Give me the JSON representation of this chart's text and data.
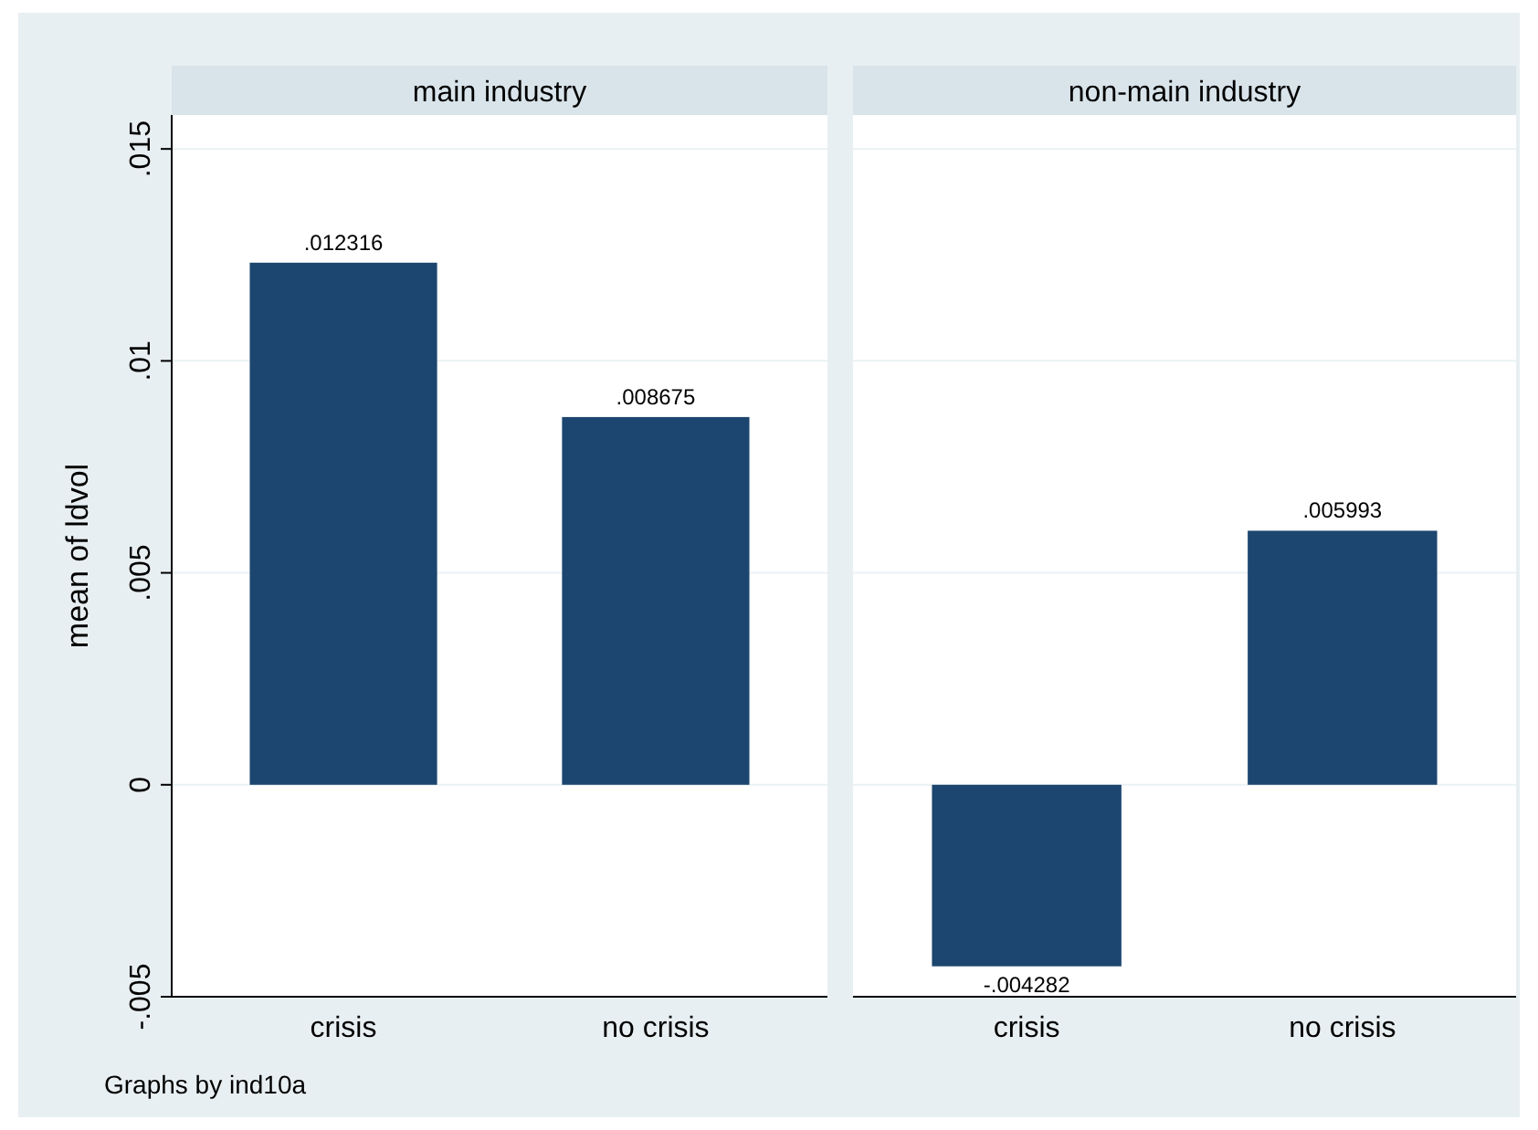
{
  "chart_data": [
    {
      "type": "bar",
      "title": "main industry",
      "ylabel": "mean of ldvol",
      "categories": [
        "crisis",
        "no crisis"
      ],
      "values": [
        0.012316,
        0.008675
      ],
      "value_labels": [
        ".012316",
        ".008675"
      ],
      "color": "#1c466f",
      "ylim": [
        -0.005,
        0.0158
      ],
      "yticks": [
        {
          "value": -0.005,
          "label": "-.005"
        },
        {
          "value": 0,
          "label": "0"
        },
        {
          "value": 0.005,
          "label": ".005"
        },
        {
          "value": 0.01,
          "label": ".01"
        },
        {
          "value": 0.015,
          "label": ".015"
        }
      ],
      "grid": "y",
      "annotations": [
        "Graphs by ind10a"
      ]
    },
    {
      "type": "bar",
      "title": "non-main industry",
      "categories": [
        "crisis",
        "no crisis"
      ],
      "values": [
        -0.004282,
        0.005993
      ],
      "value_labels": [
        "-.004282",
        ".005993"
      ],
      "color": "#1c466f",
      "ylim": [
        -0.005,
        0.0158
      ],
      "yticks": [
        {
          "value": -0.005,
          "label": null
        },
        {
          "value": 0,
          "label": null
        },
        {
          "value": 0.005,
          "label": null
        },
        {
          "value": 0.01,
          "label": null
        },
        {
          "value": 0.015,
          "label": null
        }
      ],
      "grid": "y",
      "tick_labels": "x"
    }
  ]
}
